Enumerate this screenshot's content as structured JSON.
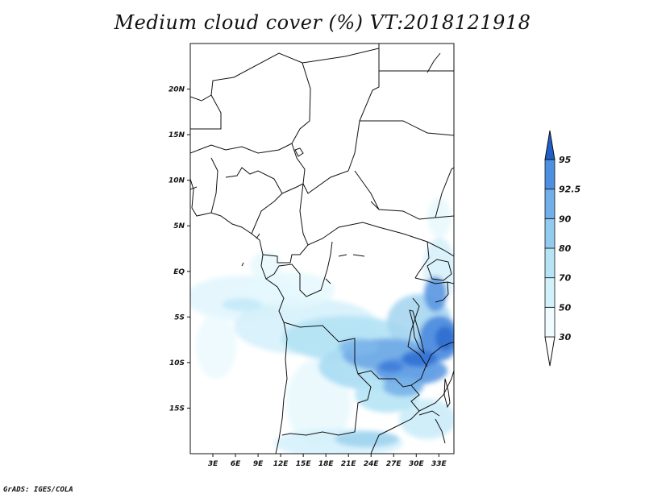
{
  "title": "Medium cloud cover (%) VT:2018121918",
  "credit": "GrADS: IGES/COLA",
  "map": {
    "lon_range": [
      0,
      35
    ],
    "lat_range": [
      -20,
      25
    ],
    "lat_ticks": [
      {
        "value": 20,
        "label": "20N"
      },
      {
        "value": 15,
        "label": "15N"
      },
      {
        "value": 10,
        "label": "10N"
      },
      {
        "value": 5,
        "label": "5N"
      },
      {
        "value": 0,
        "label": "EQ"
      },
      {
        "value": -5,
        "label": "5S"
      },
      {
        "value": -10,
        "label": "10S"
      },
      {
        "value": -15,
        "label": "15S"
      }
    ],
    "lon_ticks": [
      {
        "value": 3,
        "label": "3E"
      },
      {
        "value": 6,
        "label": "6E"
      },
      {
        "value": 9,
        "label": "9E"
      },
      {
        "value": 12,
        "label": "12E"
      },
      {
        "value": 15,
        "label": "15E"
      },
      {
        "value": 18,
        "label": "18E"
      },
      {
        "value": 21,
        "label": "21E"
      },
      {
        "value": 24,
        "label": "24E"
      },
      {
        "value": 27,
        "label": "27E"
      },
      {
        "value": 30,
        "label": "30E"
      },
      {
        "value": 33,
        "label": "33E"
      }
    ]
  },
  "legend": {
    "levels": [
      {
        "label": "30",
        "color": "#f0fbff"
      },
      {
        "label": "50",
        "color": "#d2f2fb"
      },
      {
        "label": "70",
        "color": "#b6e4f5"
      },
      {
        "label": "80",
        "color": "#92cbef"
      },
      {
        "label": "90",
        "color": "#72aeea"
      },
      {
        "label": "92.5",
        "color": "#4d8fe0"
      },
      {
        "label": "95",
        "color": "#2c6fd2"
      }
    ],
    "below_color": "#ffffff",
    "top_color": "#1e5fc8"
  }
}
